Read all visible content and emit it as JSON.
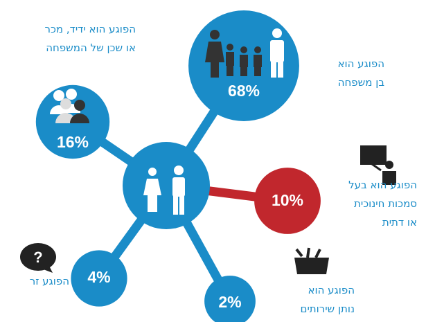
{
  "chart_data": {
    "type": "radial-bubble",
    "categories": [
      "הפוגע הוא\nבן משפחה",
      "הפוגע הוא ידיד, מכר\nאו שכן של המשפחה",
      "הפוגע הוא בעל\nסמכות חינוכית\nאו דתית",
      "הפוגע זר",
      "הפוגע הוא\nנותן שירותים"
    ],
    "values": [
      68,
      16,
      10,
      4,
      2
    ],
    "value_labels": [
      "68%",
      "16%",
      "10%",
      "4%",
      "2%"
    ],
    "colors": [
      "#1a8cc8",
      "#1a8cc8",
      "#c1272d",
      "#1a8cc8",
      "#1a8cc8"
    ]
  }
}
